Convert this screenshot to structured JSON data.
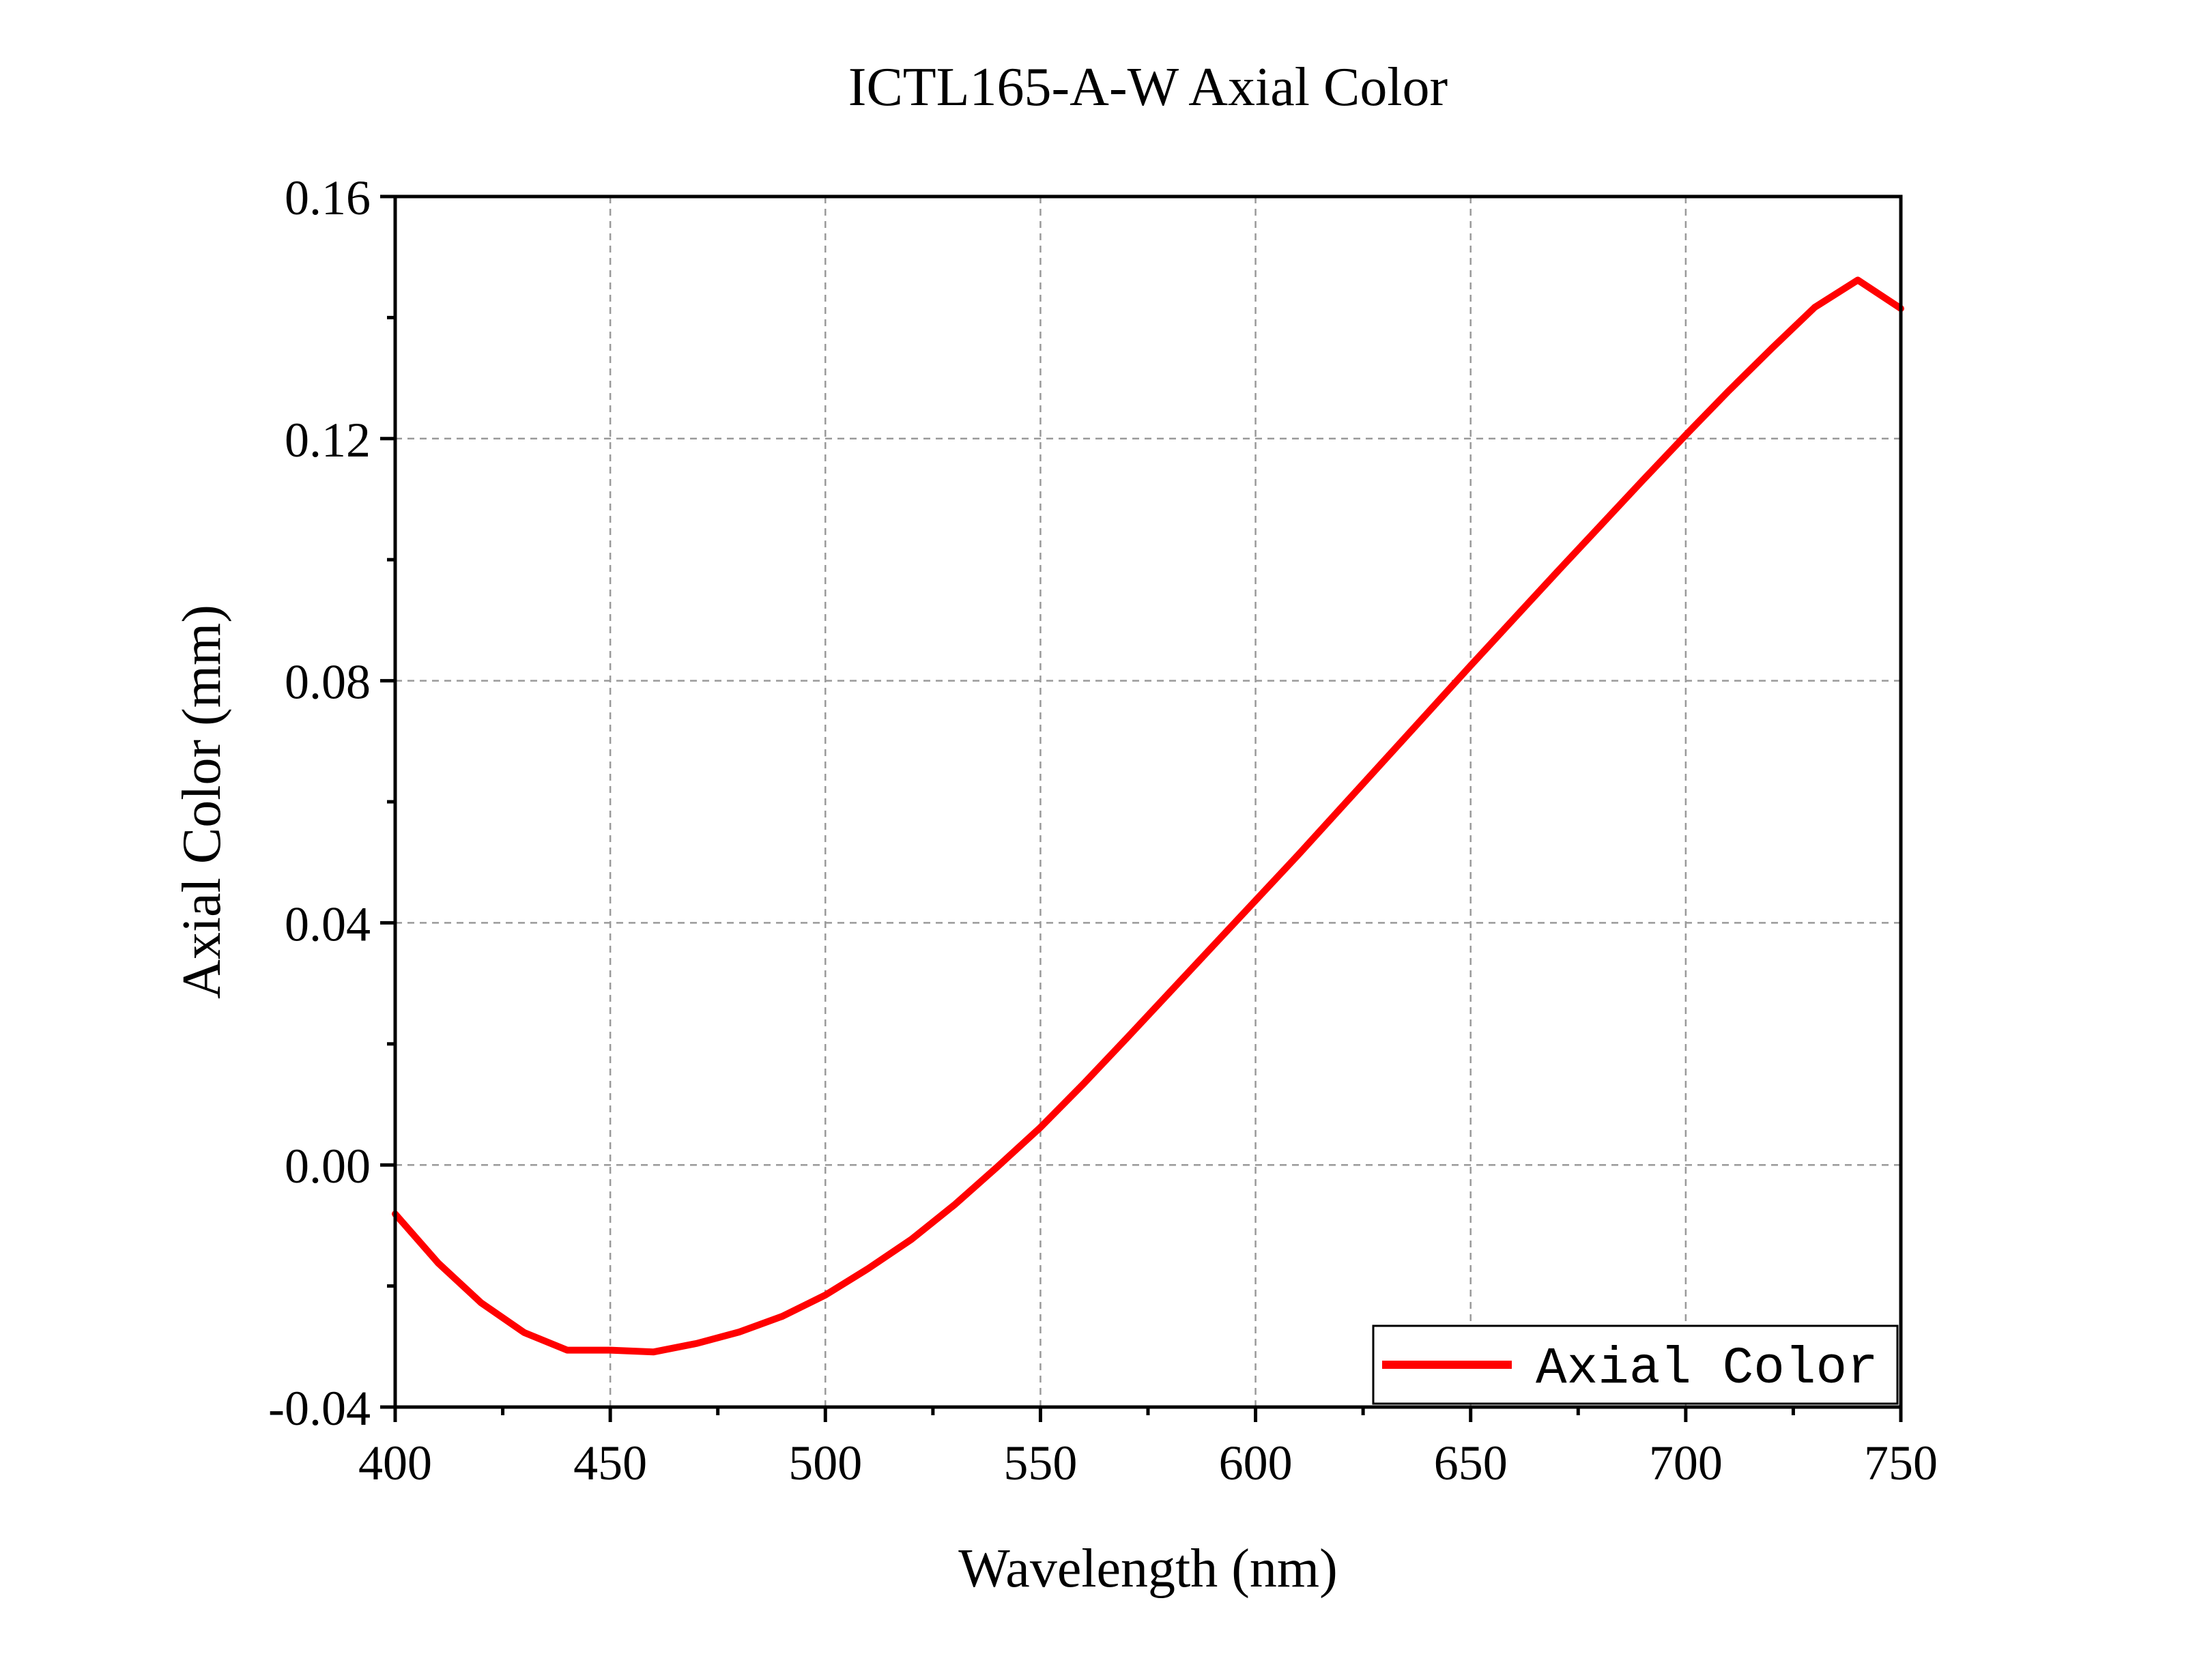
{
  "chart_data": {
    "type": "line",
    "title": "ICTL165-A-W Axial Color",
    "xlabel": "Wavelength (nm)",
    "ylabel": "Axial Color (mm)",
    "xlim": [
      400,
      750
    ],
    "ylim": [
      -0.04,
      0.16
    ],
    "x_ticks": [
      400,
      450,
      500,
      550,
      600,
      650,
      700,
      750
    ],
    "x_tick_labels": [
      "400",
      "450",
      "500",
      "550",
      "600",
      "650",
      "700",
      "750"
    ],
    "y_ticks": [
      -0.04,
      0.0,
      0.04,
      0.08,
      0.12,
      0.16
    ],
    "y_tick_labels": [
      "-0.04",
      "0.00",
      "0.04",
      "0.08",
      "0.12",
      "0.16"
    ],
    "grid": true,
    "legend_position": "bottom-right",
    "series": [
      {
        "name": "Axial Color",
        "color": "#ff0000",
        "x": [
          400,
          410,
          420,
          430,
          440,
          450,
          460,
          470,
          480,
          490,
          500,
          510,
          520,
          530,
          540,
          550,
          560,
          570,
          580,
          590,
          600,
          610,
          620,
          630,
          640,
          650,
          660,
          670,
          680,
          690,
          700,
          710,
          720,
          730,
          740,
          750
        ],
        "y": [
          -0.0081,
          -0.0162,
          -0.0228,
          -0.0277,
          -0.0306,
          -0.0306,
          -0.0309,
          -0.0295,
          -0.0276,
          -0.025,
          -0.0215,
          -0.0171,
          -0.0123,
          -0.0066,
          -0.0003,
          0.0062,
          0.0134,
          0.0209,
          0.0285,
          0.0361,
          0.0437,
          0.0513,
          0.0591,
          0.0669,
          0.0747,
          0.0825,
          0.0902,
          0.0979,
          0.1055,
          0.1131,
          0.1206,
          0.1279,
          0.1349,
          0.1417,
          0.1462,
          0.1415
        ]
      }
    ]
  }
}
